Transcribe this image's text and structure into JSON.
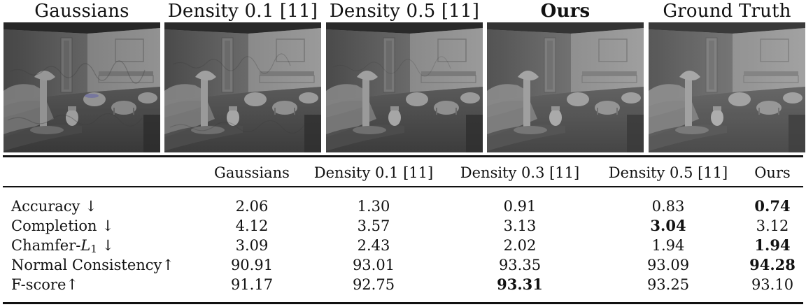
{
  "figure": {
    "panels": [
      {
        "title": "Gaussians",
        "bold": false
      },
      {
        "title": "Density 0.1 [11]",
        "bold": false
      },
      {
        "title": "Density 0.5 [11]",
        "bold": false
      },
      {
        "title": "Ours",
        "bold": true
      },
      {
        "title": "Ground Truth",
        "bold": false
      }
    ]
  },
  "table": {
    "columns": [
      "Gaussians",
      "Density 0.1 [11]",
      "Density 0.3 [11]",
      "Density 0.5 [11]",
      "Ours"
    ],
    "rows": [
      {
        "label_parts": [
          "Accuracy ↓"
        ],
        "values": [
          "2.06",
          "1.30",
          "0.91",
          "0.83",
          "0.74"
        ],
        "bold_index": 4
      },
      {
        "label_parts": [
          "Completion ↓"
        ],
        "values": [
          "4.12",
          "3.57",
          "3.13",
          "3.04",
          "3.12"
        ],
        "bold_index": 3
      },
      {
        "label_parts": [
          "Chamfer-",
          "L",
          "1",
          " ↓"
        ],
        "values": [
          "3.09",
          "2.43",
          "2.02",
          "1.94",
          "1.94"
        ],
        "bold_index": 4
      },
      {
        "label_parts": [
          "Normal Consistency↑"
        ],
        "values": [
          "90.91",
          "93.01",
          "93.35",
          "93.09",
          "94.28"
        ],
        "bold_index": 4
      },
      {
        "label_parts": [
          "F-score↑"
        ],
        "values": [
          "91.17",
          "92.75",
          "93.31",
          "93.25",
          "93.10"
        ],
        "bold_index": 2
      }
    ]
  }
}
